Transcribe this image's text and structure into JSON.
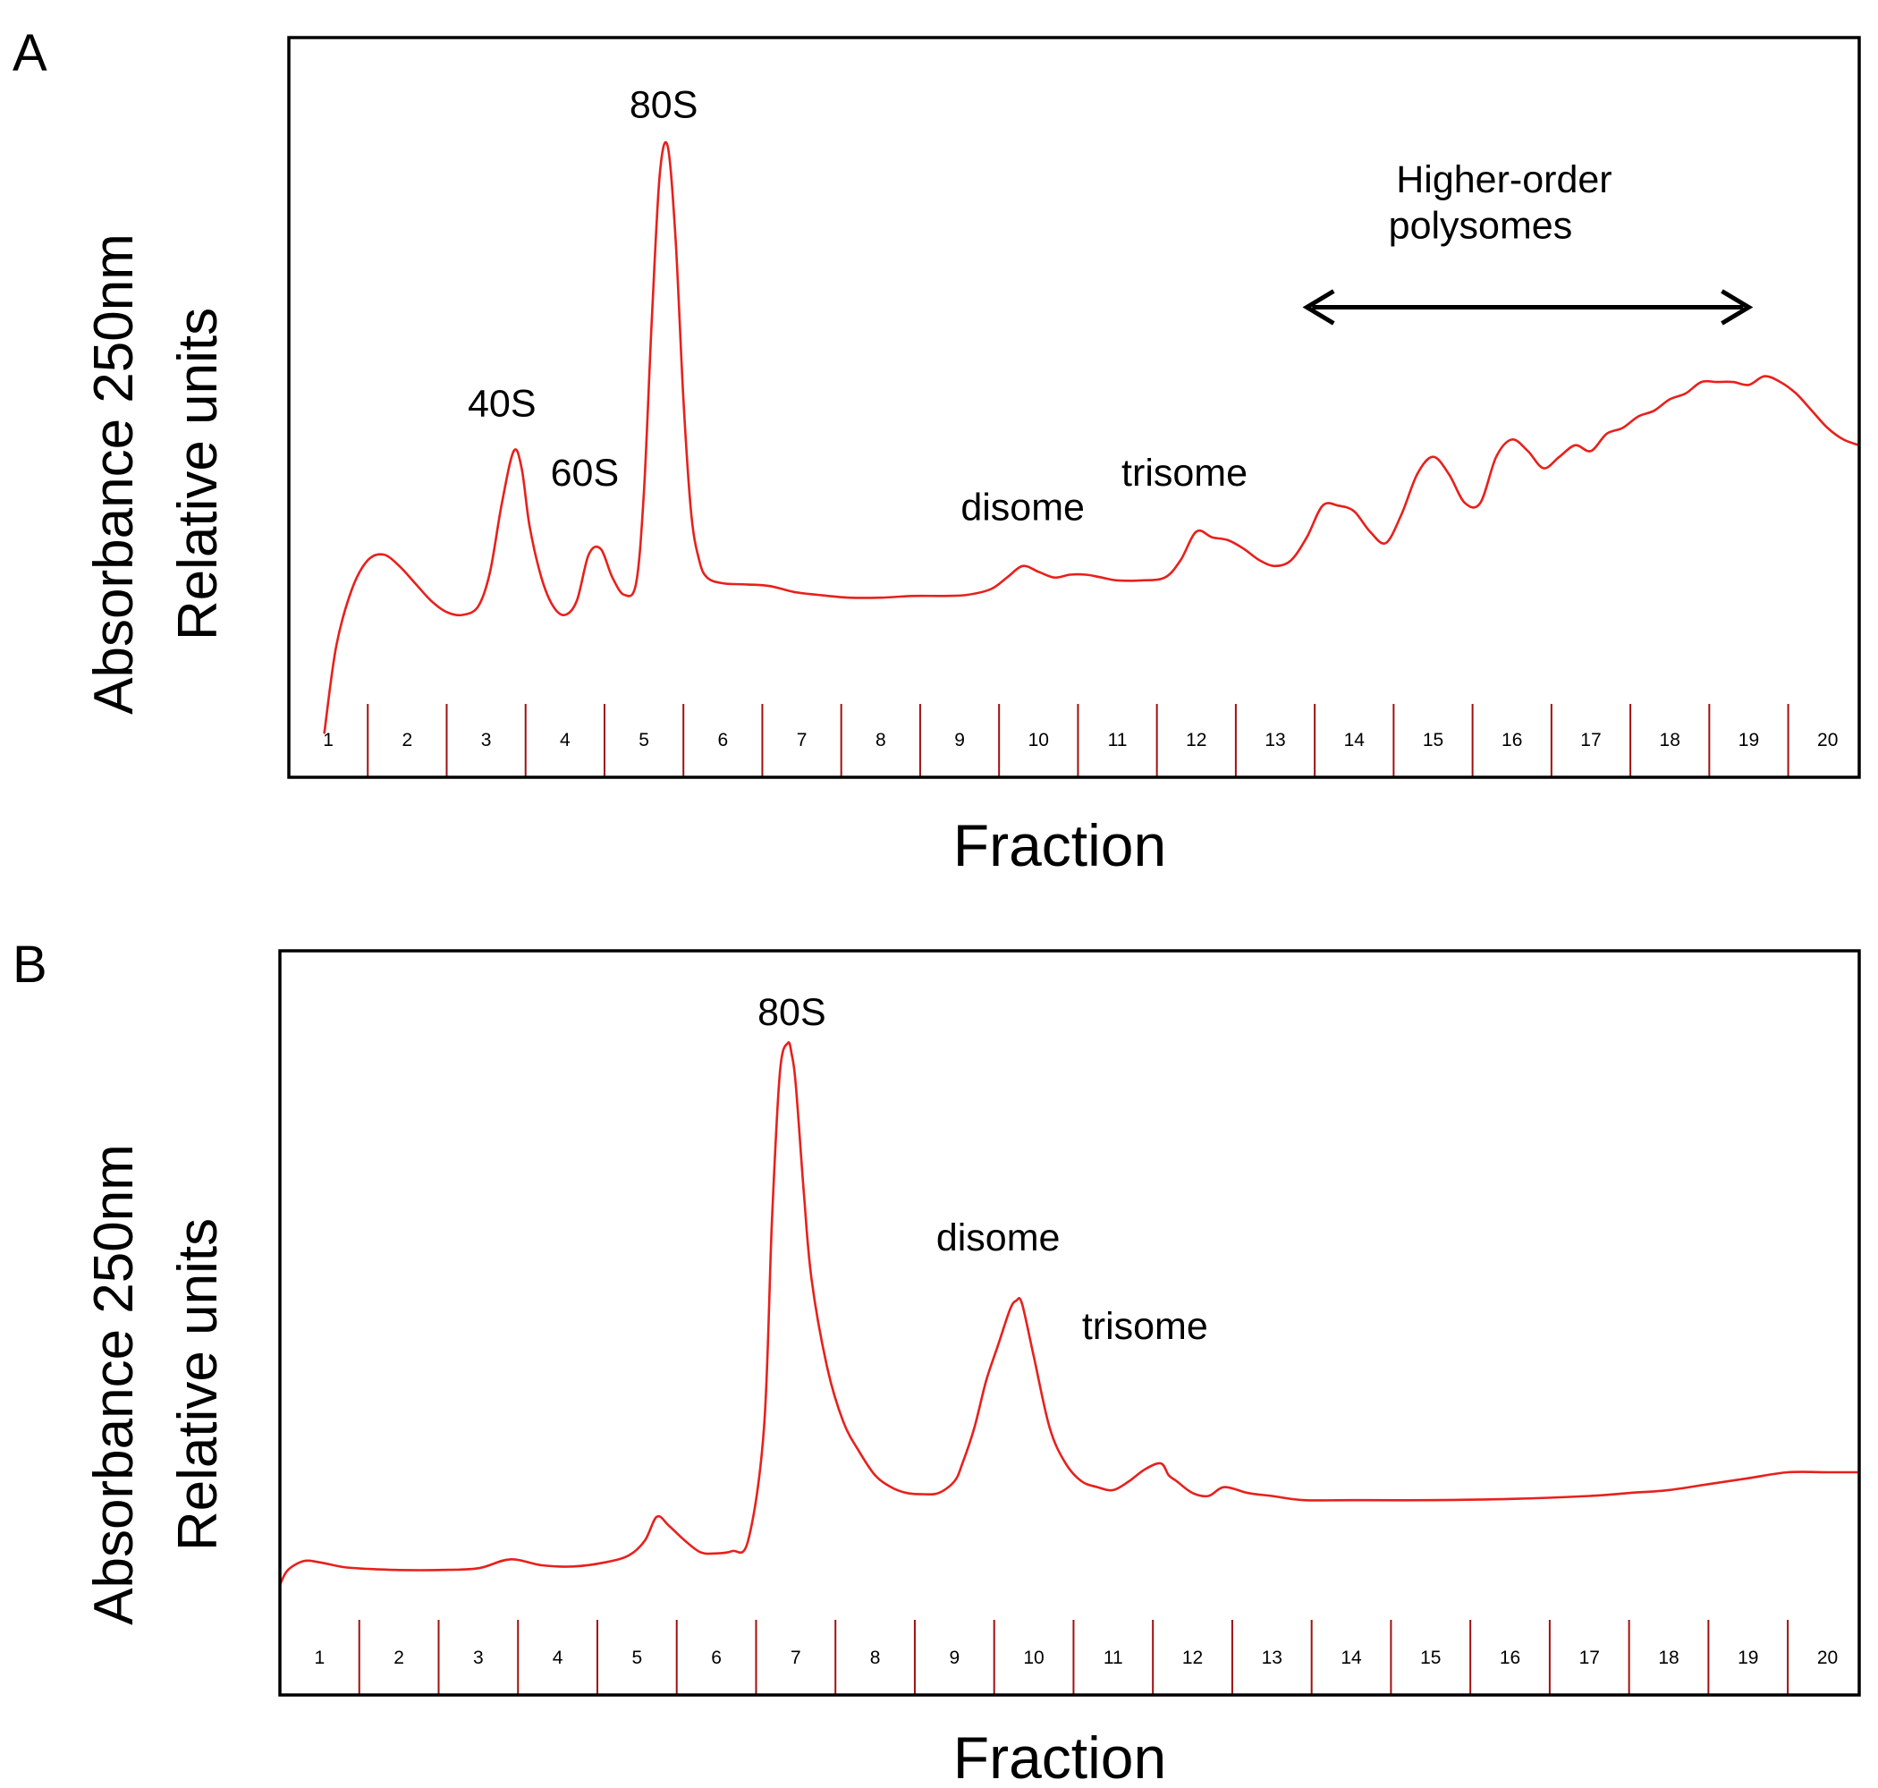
{
  "colors": {
    "trace": "#e8201c",
    "tick_line": "#a01010",
    "frame": "#000000",
    "arrow": "#000000"
  },
  "chart_data": [
    {
      "panel": "A",
      "type": "line",
      "xlabel": "Fraction",
      "ylabel_lines": [
        "Absorbance 250nm",
        "Relative units"
      ],
      "xlim": [
        0.5,
        20.4
      ],
      "ylim": [
        0,
        100
      ],
      "fraction_labels": [
        "1",
        "2",
        "3",
        "4",
        "5",
        "6",
        "7",
        "8",
        "9",
        "10",
        "11",
        "12",
        "13",
        "14",
        "15",
        "16",
        "17",
        "18",
        "19",
        "20"
      ],
      "grid": false,
      "series": [
        {
          "x": [
            0.95,
            1.1,
            1.3,
            1.5,
            1.7,
            1.9,
            2.1,
            2.3,
            2.5,
            2.7,
            2.9,
            3.05,
            3.2,
            3.35,
            3.45,
            3.55,
            3.7,
            3.85,
            4.0,
            4.15,
            4.3,
            4.45,
            4.6,
            4.75,
            4.9,
            5.0,
            5.1,
            5.2,
            5.3,
            5.4,
            5.5,
            5.6,
            5.7,
            5.8,
            6.0,
            6.3,
            6.6,
            6.9,
            7.2,
            7.6,
            8.0,
            8.4,
            8.8,
            9.1,
            9.4,
            9.6,
            9.8,
            10.0,
            10.2,
            10.4,
            10.6,
            10.8,
            11.0,
            11.3,
            11.6,
            11.8,
            12.0,
            12.2,
            12.4,
            12.6,
            12.8,
            13.0,
            13.2,
            13.4,
            13.6,
            13.8,
            14.0,
            14.2,
            14.4,
            14.6,
            14.8,
            15.0,
            15.2,
            15.4,
            15.6,
            15.8,
            16.0,
            16.2,
            16.4,
            16.6,
            16.8,
            17.0,
            17.2,
            17.4,
            17.6,
            17.8,
            18.0,
            18.2,
            18.4,
            18.6,
            18.8,
            19.0,
            19.2,
            19.4,
            19.6,
            19.8,
            20.0,
            20.2,
            20.4
          ],
          "y": [
            -10,
            5,
            15,
            20,
            21,
            19,
            16,
            13,
            11,
            10.5,
            12,
            18,
            30,
            39,
            36,
            26,
            17,
            12,
            10.5,
            13,
            21,
            22,
            17,
            14,
            16,
            32,
            62,
            87,
            92,
            76,
            48,
            28,
            20,
            17,
            16,
            15.8,
            15.5,
            14.5,
            14,
            13.5,
            13.5,
            13.8,
            13.8,
            14,
            15,
            17,
            19,
            18,
            17,
            17.5,
            17.5,
            17,
            16.5,
            16.5,
            17,
            20,
            25,
            24,
            23.5,
            22,
            20,
            19,
            20,
            24,
            29.5,
            29.5,
            28.5,
            25,
            23,
            28,
            35,
            38,
            35,
            30,
            30,
            38,
            41,
            39,
            36,
            38,
            40,
            39,
            42,
            43,
            45,
            46,
            48,
            49,
            51,
            51,
            51,
            50.5,
            52,
            51,
            49,
            46,
            43,
            41,
            40
          ]
        }
      ],
      "annotations": [
        {
          "text": "80S",
          "x": 5.25,
          "y": 97
        },
        {
          "text": "40S",
          "x": 3.2,
          "y": 45
        },
        {
          "text": "60S",
          "x": 4.25,
          "y": 33
        },
        {
          "text": "disome",
          "x": 9.8,
          "y": 27
        },
        {
          "text": "trisome",
          "x": 11.85,
          "y": 33
        },
        {
          "text": "Higher-order",
          "x": 15.9,
          "y": 84
        },
        {
          "text": "polysomes",
          "x": 15.6,
          "y": 76
        }
      ],
      "arrow": {
        "x_start": 13.4,
        "x_end": 19.0,
        "y": 64
      }
    },
    {
      "panel": "B",
      "type": "line",
      "xlabel": "Fraction",
      "ylabel_lines": [
        "Absorbance 250nm",
        "Relative units"
      ],
      "xlim": [
        0.5,
        20.4
      ],
      "ylim": [
        0,
        100
      ],
      "fraction_labels": [
        "1",
        "2",
        "3",
        "4",
        "5",
        "6",
        "7",
        "8",
        "9",
        "10",
        "11",
        "12",
        "13",
        "14",
        "15",
        "16",
        "17",
        "18",
        "19",
        "20"
      ],
      "grid": false,
      "series": [
        {
          "x": [
            0.5,
            0.6,
            0.8,
            1.0,
            1.3,
            1.6,
            2.0,
            2.5,
            3.0,
            3.4,
            3.8,
            4.2,
            4.6,
            4.9,
            5.1,
            5.25,
            5.4,
            5.6,
            5.8,
            6.0,
            6.2,
            6.4,
            6.6,
            6.7,
            6.8,
            6.9,
            6.95,
            7.0,
            7.1,
            7.2,
            7.4,
            7.6,
            7.8,
            8.0,
            8.2,
            8.4,
            8.6,
            8.8,
            9.0,
            9.1,
            9.25,
            9.4,
            9.55,
            9.7,
            9.78,
            9.85,
            10.0,
            10.2,
            10.4,
            10.6,
            10.8,
            11.0,
            11.2,
            11.4,
            11.6,
            11.7,
            11.8,
            12.0,
            12.2,
            12.4,
            12.7,
            13.0,
            13.4,
            14.0,
            15.0,
            16.0,
            17.0,
            17.5,
            18.0,
            18.5,
            19.0,
            19.5,
            20.0,
            20.4
          ],
          "y": [
            3.5,
            6,
            7.5,
            7.3,
            6.5,
            6.2,
            6,
            6,
            6.3,
            7.8,
            6.8,
            6.6,
            7.3,
            8.5,
            11,
            15,
            13.5,
            11,
            9,
            8.8,
            9.2,
            11,
            30,
            65,
            90,
            95,
            93,
            88,
            70,
            55,
            40,
            31,
            26,
            22,
            20,
            19,
            18.8,
            19,
            21,
            24,
            30,
            38,
            44,
            50,
            51.5,
            51,
            42,
            30,
            24,
            21,
            20,
            19.5,
            21,
            23,
            24,
            22,
            21,
            19,
            18.5,
            20,
            19,
            18.5,
            17.8,
            17.8,
            17.8,
            18,
            18.5,
            19,
            19.5,
            20.5,
            21.5,
            22.5,
            22.5,
            22.5
          ]
        }
      ],
      "annotations": [
        {
          "text": "80S",
          "x": 6.95,
          "y": 98
        },
        {
          "text": "disome",
          "x": 9.55,
          "y": 60
        },
        {
          "text": "trisome",
          "x": 11.4,
          "y": 45
        }
      ]
    }
  ]
}
